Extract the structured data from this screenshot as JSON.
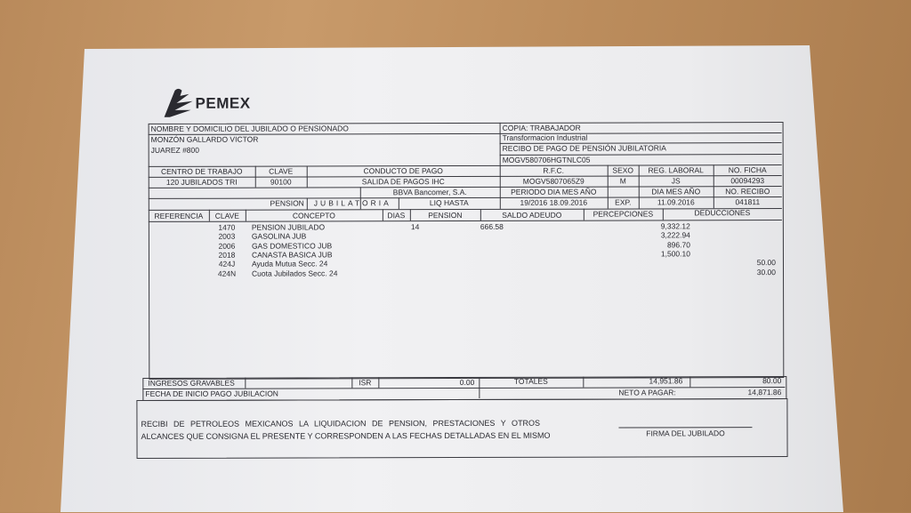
{
  "brand": {
    "name": "PEMEX",
    "logo_icon": "pemex-eagle-logo"
  },
  "header": {
    "name_label": "NOMBRE Y DOMICILIO DEL JUBILADO O PENSIONADO",
    "name": "MONZÓN GALLARDO VICTOR",
    "address": "JUAREZ #800",
    "copy_label": "COPIA: TRABAJADOR",
    "department": "Transformacion Industrial",
    "doc_title": "RECIBO DE PAGO DE PENSIÓN JUBILATORIA",
    "curp": "MOGV580706HGTNLC05"
  },
  "info": {
    "centro_label": "CENTRO DE TRABAJO",
    "centro": "120 JUBILADOS TRI",
    "clave_label": "CLAVE",
    "clave": "90100",
    "conducto_label": "CONDUCTO DE PAGO",
    "conducto": "SALIDA DE PAGOS IHC",
    "banco": "BBVA Bancomer, S.A.",
    "rfc_label": "R.F.C.",
    "rfc": "MOGV5807065Z9",
    "sexo_label": "SEXO",
    "sexo": "M",
    "reg_label": "REG. LABORAL",
    "reg": "JS",
    "ficha_label": "NO. FICHA",
    "ficha": "00094293",
    "periodo_label": "PERIODO  DIA MES AÑO",
    "periodo": "19/2016   18.09.2016",
    "fecha_label": "DIA  MES  AÑO",
    "exp_label": "EXP.",
    "exp": "11.09.2016",
    "recibo_label": "NO. RECIBO",
    "recibo": "041811",
    "pension_label": "PENSION",
    "pension_type": "JUBILATORIA",
    "liq_label": "LIQ HASTA"
  },
  "table": {
    "columns": [
      "REFERENCIA",
      "CLAVE",
      "CONCEPTO",
      "DIAS",
      "PENSION",
      "SALDO ADEUDO",
      "PERCEPCIONES",
      "DEDUCCIONES"
    ],
    "rows": [
      {
        "clave": "1470",
        "concepto": "PENSION JUBILADO",
        "dias": "14",
        "saldo": "666.58",
        "percepcion": "9,332.12",
        "deduccion": ""
      },
      {
        "clave": "2003",
        "concepto": "GASOLINA  JUB",
        "dias": "",
        "saldo": "",
        "percepcion": "3,222.94",
        "deduccion": ""
      },
      {
        "clave": "2006",
        "concepto": "GAS DOMESTICO  JUB",
        "dias": "",
        "saldo": "",
        "percepcion": "896.70",
        "deduccion": ""
      },
      {
        "clave": "2018",
        "concepto": "CANASTA BASICA  JUB",
        "dias": "",
        "saldo": "",
        "percepcion": "1,500.10",
        "deduccion": ""
      },
      {
        "clave": "424J",
        "concepto": "Ayuda Mutua Secc. 24",
        "dias": "",
        "saldo": "",
        "percepcion": "",
        "deduccion": "50.00"
      },
      {
        "clave": "424N",
        "concepto": "Cuota Jubilados Secc. 24",
        "dias": "",
        "saldo": "",
        "percepcion": "",
        "deduccion": "30.00"
      }
    ]
  },
  "totals": {
    "ingresos_label": "INGRESOS GRAVABLES",
    "isr_label": "ISR",
    "isr": "0.00",
    "totales_label": "TOTALES",
    "total_percepciones": "14,951.86",
    "total_deducciones": "80.00",
    "fecha_inicio_label": "FECHA DE INICIO PAGO JUBILACION",
    "neto_label": "NETO A PAGAR:",
    "neto": "14,871.86"
  },
  "footer": {
    "line1": "RECIBI  DE  PETROLEOS  MEXICANOS  LA  LIQUIDACION  DE  PENSION,  PRESTACIONES  Y  OTROS",
    "line2": "ALCANCES QUE CONSIGNA EL PRESENTE Y CORRESPONDEN A LAS FECHAS DETALLADAS EN EL MISMO",
    "signature_label": "FIRMA DEL JUBILADO"
  }
}
